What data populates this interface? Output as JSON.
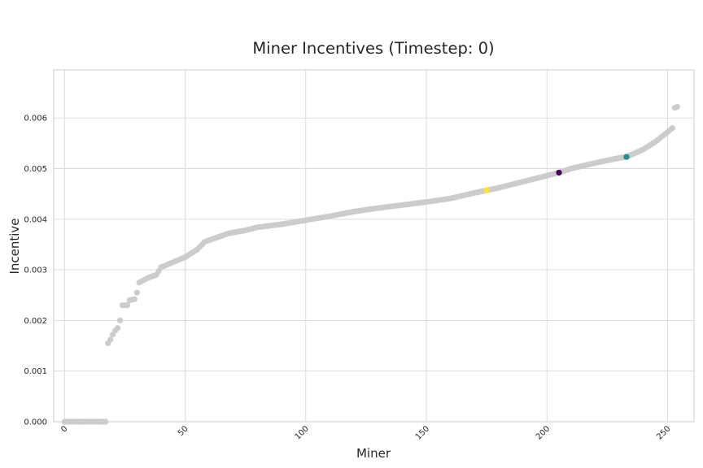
{
  "chart_data": {
    "type": "scatter",
    "title": "Miner Incentives (Timestep: 0)",
    "xlabel": "Miner",
    "ylabel": "Incentive",
    "xlim": [
      -4.5,
      261
    ],
    "ylim": [
      0,
      0.00695
    ],
    "xticks": [
      0,
      50,
      100,
      150,
      200,
      250
    ],
    "xtick_labels": [
      "0",
      "50",
      "100",
      "150",
      "200",
      "250"
    ],
    "yticks": [
      0.0,
      0.001,
      0.002,
      0.003,
      0.004,
      0.005,
      0.006
    ],
    "ytick_labels": [
      "0.000",
      "0.001",
      "0.002",
      "0.003",
      "0.004",
      "0.005",
      "0.006"
    ],
    "grid": true,
    "base_color": "#cccccc",
    "curve": {
      "description_points": [
        [
          0,
          0.0
        ],
        [
          17,
          0.0
        ],
        [
          18,
          0.00155
        ],
        [
          19,
          0.00162
        ],
        [
          20,
          0.00172
        ],
        [
          21,
          0.0018
        ],
        [
          22,
          0.00185
        ],
        [
          23,
          0.002
        ],
        [
          24,
          0.0023
        ],
        [
          26,
          0.0023
        ],
        [
          27,
          0.0024
        ],
        [
          29,
          0.00242
        ],
        [
          30,
          0.00255
        ],
        [
          31,
          0.00275
        ],
        [
          33,
          0.0028
        ],
        [
          35,
          0.00285
        ],
        [
          38,
          0.0029
        ],
        [
          40,
          0.00305
        ],
        [
          45,
          0.00315
        ],
        [
          50,
          0.00325
        ],
        [
          55,
          0.0034
        ],
        [
          58,
          0.00355
        ],
        [
          62,
          0.00362
        ],
        [
          68,
          0.00372
        ],
        [
          75,
          0.00378
        ],
        [
          80,
          0.00384
        ],
        [
          90,
          0.0039
        ],
        [
          100,
          0.00398
        ],
        [
          110,
          0.00406
        ],
        [
          120,
          0.00415
        ],
        [
          130,
          0.00422
        ],
        [
          140,
          0.00428
        ],
        [
          150,
          0.00434
        ],
        [
          160,
          0.00441
        ],
        [
          170,
          0.00452
        ],
        [
          175,
          0.00457
        ],
        [
          180,
          0.00462
        ],
        [
          190,
          0.00474
        ],
        [
          200,
          0.00486
        ],
        [
          205,
          0.00492
        ],
        [
          210,
          0.005
        ],
        [
          220,
          0.00511
        ],
        [
          230,
          0.00521
        ],
        [
          233,
          0.00523
        ],
        [
          240,
          0.00538
        ],
        [
          245,
          0.00553
        ],
        [
          250,
          0.00572
        ],
        [
          252,
          0.0058
        ],
        [
          253,
          0.0062
        ],
        [
          254,
          0.00622
        ]
      ]
    },
    "highlighted_points": [
      {
        "x": 175,
        "y": 0.00457,
        "color": "#fde725"
      },
      {
        "x": 205,
        "y": 0.00492,
        "color": "#440154"
      },
      {
        "x": 233,
        "y": 0.00523,
        "color": "#21918c"
      }
    ]
  }
}
